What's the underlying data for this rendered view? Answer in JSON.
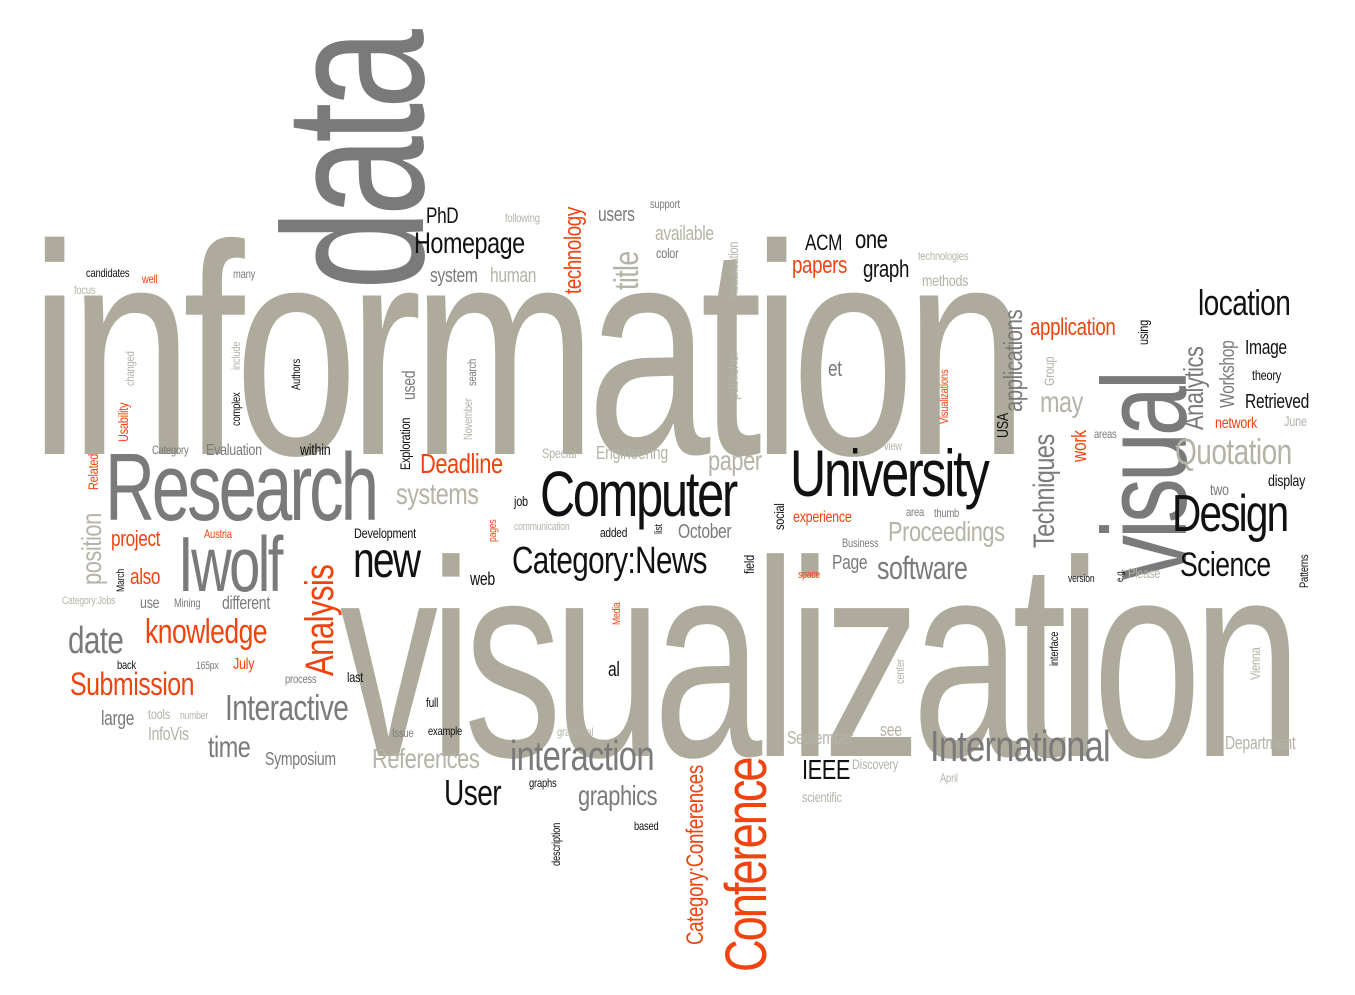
{
  "palette": {
    "gray": "#aeab9c",
    "dark": "#7a7a7a",
    "black": "#111111",
    "orange": "#f04410",
    "light": "#b5b3a6"
  },
  "words": [
    {
      "text": "information",
      "color": "gray"
    },
    {
      "text": "visualization",
      "color": "gray"
    },
    {
      "text": "data",
      "color": "dark"
    },
    {
      "text": "visual",
      "color": "dark"
    },
    {
      "text": "Research",
      "color": "dark"
    },
    {
      "text": "Iwolf",
      "color": "dark"
    },
    {
      "text": "Computer",
      "color": "black"
    },
    {
      "text": "University",
      "color": "black"
    },
    {
      "text": "Design",
      "color": "black"
    },
    {
      "text": "new",
      "color": "black"
    },
    {
      "text": "Category:News",
      "color": "black"
    },
    {
      "text": "Conference",
      "color": "orange"
    },
    {
      "text": "International",
      "color": "dark"
    },
    {
      "text": "interaction",
      "color": "dark"
    },
    {
      "text": "Analysis",
      "color": "orange"
    },
    {
      "text": "Interactive",
      "color": "dark"
    },
    {
      "text": "knowledge",
      "color": "orange"
    },
    {
      "text": "Submission",
      "color": "orange"
    },
    {
      "text": "date",
      "color": "dark"
    },
    {
      "text": "location",
      "color": "black"
    },
    {
      "text": "Science",
      "color": "black"
    },
    {
      "text": "Quotation",
      "color": "light"
    },
    {
      "text": "Homepage",
      "color": "black"
    },
    {
      "text": "User",
      "color": "black"
    },
    {
      "text": "systems",
      "color": "light"
    },
    {
      "text": "software",
      "color": "dark"
    },
    {
      "text": "Deadline",
      "color": "orange"
    },
    {
      "text": "Proceedings",
      "color": "light"
    },
    {
      "text": "References",
      "color": "light"
    },
    {
      "text": "graphics",
      "color": "dark"
    },
    {
      "text": "time",
      "color": "dark"
    },
    {
      "text": "paper",
      "color": "light"
    },
    {
      "text": "Category:Conferences",
      "color": "orange"
    },
    {
      "text": "Techniques",
      "color": "dark"
    },
    {
      "text": "Analytics",
      "color": "dark"
    },
    {
      "text": "title",
      "color": "light"
    },
    {
      "text": "technology",
      "color": "orange"
    },
    {
      "text": "applications",
      "color": "dark"
    },
    {
      "text": "position",
      "color": "light"
    },
    {
      "text": "IEEE",
      "color": "black"
    },
    {
      "text": "application",
      "color": "orange"
    },
    {
      "text": "papers",
      "color": "orange"
    },
    {
      "text": "one",
      "color": "black"
    },
    {
      "text": "graph",
      "color": "black"
    },
    {
      "text": "ACM",
      "color": "black"
    },
    {
      "text": "PhD",
      "color": "black"
    },
    {
      "text": "Image",
      "color": "black"
    },
    {
      "text": "Retrieved",
      "color": "black"
    },
    {
      "text": "Workshop",
      "color": "dark"
    },
    {
      "text": "may",
      "color": "light"
    },
    {
      "text": "work",
      "color": "orange"
    },
    {
      "text": "network",
      "color": "orange"
    },
    {
      "text": "theory",
      "color": "black"
    },
    {
      "text": "display",
      "color": "black"
    },
    {
      "text": "two",
      "color": "dark"
    },
    {
      "text": "June",
      "color": "light"
    },
    {
      "text": "areas",
      "color": "dark"
    },
    {
      "text": "using",
      "color": "black"
    },
    {
      "text": "USA",
      "color": "black"
    },
    {
      "text": "Group",
      "color": "light"
    },
    {
      "text": "Visualizations",
      "color": "orange"
    },
    {
      "text": "et",
      "color": "dark"
    },
    {
      "text": "methods",
      "color": "light"
    },
    {
      "text": "technologies",
      "color": "light"
    },
    {
      "text": "system",
      "color": "dark"
    },
    {
      "text": "human",
      "color": "light"
    },
    {
      "text": "users",
      "color": "dark"
    },
    {
      "text": "following",
      "color": "light"
    },
    {
      "text": "support",
      "color": "dark"
    },
    {
      "text": "available",
      "color": "light"
    },
    {
      "text": "color",
      "color": "dark"
    },
    {
      "text": "Visualisation",
      "color": "light"
    },
    {
      "text": "publisher",
      "color": "light"
    },
    {
      "text": "used",
      "color": "dark"
    },
    {
      "text": "search",
      "color": "dark"
    },
    {
      "text": "November",
      "color": "light"
    },
    {
      "text": "Exploration",
      "color": "black"
    },
    {
      "text": "Authors",
      "color": "black"
    },
    {
      "text": "complex",
      "color": "black"
    },
    {
      "text": "include",
      "color": "light"
    },
    {
      "text": "changed",
      "color": "light"
    },
    {
      "text": "Usability",
      "color": "orange"
    },
    {
      "text": "many",
      "color": "dark"
    },
    {
      "text": "candidates",
      "color": "black"
    },
    {
      "text": "well",
      "color": "orange"
    },
    {
      "text": "focus",
      "color": "light"
    },
    {
      "text": "Category",
      "color": "dark"
    },
    {
      "text": "Evaluation",
      "color": "dark"
    },
    {
      "text": "within",
      "color": "black"
    },
    {
      "text": "Related",
      "color": "orange"
    },
    {
      "text": "Special",
      "color": "light"
    },
    {
      "text": "Engineering",
      "color": "light"
    },
    {
      "text": "view",
      "color": "light"
    },
    {
      "text": "job",
      "color": "black"
    },
    {
      "text": "communication",
      "color": "light"
    },
    {
      "text": "added",
      "color": "black"
    },
    {
      "text": "list",
      "color": "black"
    },
    {
      "text": "pages",
      "color": "orange"
    },
    {
      "text": "October",
      "color": "dark"
    },
    {
      "text": "social",
      "color": "black"
    },
    {
      "text": "experience",
      "color": "orange"
    },
    {
      "text": "Business",
      "color": "dark"
    },
    {
      "text": "Page",
      "color": "dark"
    },
    {
      "text": "area",
      "color": "dark"
    },
    {
      "text": "thumb",
      "color": "dark"
    },
    {
      "text": "project",
      "color": "orange"
    },
    {
      "text": "Austria",
      "color": "orange"
    },
    {
      "text": "also",
      "color": "orange"
    },
    {
      "text": "March",
      "color": "black"
    },
    {
      "text": "Development",
      "color": "black"
    },
    {
      "text": "web",
      "color": "black"
    },
    {
      "text": "field",
      "color": "black"
    },
    {
      "text": "space",
      "color": "orange"
    },
    {
      "text": "version",
      "color": "black"
    },
    {
      "text": "e.g.",
      "color": "black"
    },
    {
      "text": "Please",
      "color": "light"
    },
    {
      "text": "Patterns",
      "color": "black"
    },
    {
      "text": "Category:Jobs",
      "color": "light"
    },
    {
      "text": "use",
      "color": "dark"
    },
    {
      "text": "Mining",
      "color": "dark"
    },
    {
      "text": "different",
      "color": "dark"
    },
    {
      "text": "Media",
      "color": "orange"
    },
    {
      "text": "interface",
      "color": "black"
    },
    {
      "text": "center",
      "color": "light"
    },
    {
      "text": "Vienna",
      "color": "light"
    },
    {
      "text": "back",
      "color": "black"
    },
    {
      "text": "165px",
      "color": "dark"
    },
    {
      "text": "July",
      "color": "orange"
    },
    {
      "text": "process",
      "color": "dark"
    },
    {
      "text": "last",
      "color": "black"
    },
    {
      "text": "al",
      "color": "black"
    },
    {
      "text": "full",
      "color": "black"
    },
    {
      "text": "large",
      "color": "dark"
    },
    {
      "text": "tools",
      "color": "light"
    },
    {
      "text": "number",
      "color": "light"
    },
    {
      "text": "InfoVis",
      "color": "light"
    },
    {
      "text": "Issue",
      "color": "dark"
    },
    {
      "text": "example",
      "color": "black"
    },
    {
      "text": "graphical",
      "color": "light"
    },
    {
      "text": "Symposium",
      "color": "dark"
    },
    {
      "text": "graphs",
      "color": "black"
    },
    {
      "text": "description",
      "color": "black"
    },
    {
      "text": "based",
      "color": "black"
    },
    {
      "text": "September",
      "color": "light"
    },
    {
      "text": "see",
      "color": "light"
    },
    {
      "text": "Discovery",
      "color": "light"
    },
    {
      "text": "April",
      "color": "light"
    },
    {
      "text": "scientific",
      "color": "light"
    },
    {
      "text": "Department",
      "color": "light"
    }
  ]
}
